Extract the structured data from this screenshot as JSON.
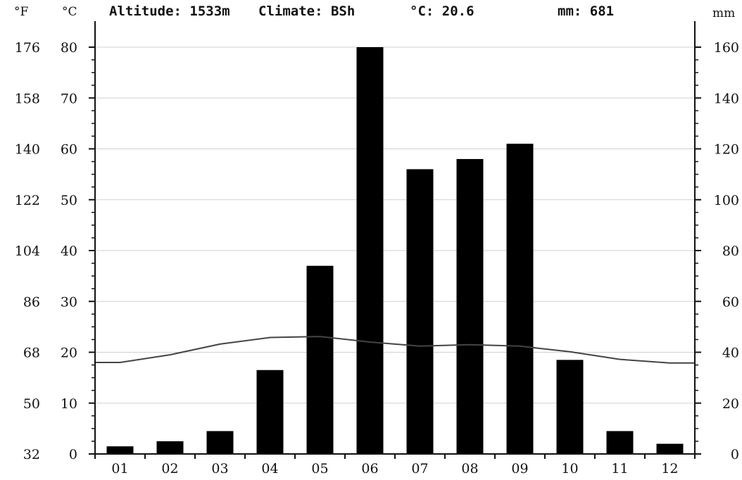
{
  "header": {
    "altitude": "Altitude: 1533m",
    "climate": "Climate: BSh",
    "mean_temp": "°C: 20.6",
    "annual_precip": "mm: 681"
  },
  "units": {
    "fahrenheit": "°F",
    "celsius": "°C",
    "precip": "mm"
  },
  "chart_data": {
    "type": "bar",
    "categories": [
      "01",
      "02",
      "03",
      "04",
      "05",
      "06",
      "07",
      "08",
      "09",
      "10",
      "11",
      "12"
    ],
    "series": [
      {
        "values": [
          3,
          5,
          9,
          33,
          74,
          160,
          112,
          116,
          122,
          37,
          9,
          4
        ],
        "axis": "right",
        "type": "bar",
        "color": "#000000"
      },
      {
        "values": [
          18.0,
          19.5,
          21.6,
          22.9,
          23.1,
          22.0,
          21.2,
          21.5,
          21.2,
          20.1,
          18.6,
          17.9
        ],
        "axis": "left",
        "type": "line",
        "color": "#444444"
      }
    ],
    "axes": {
      "fahrenheit": {
        "ticks": [
          "32",
          "50",
          "68",
          "86",
          "104",
          "122",
          "140",
          "158",
          "176"
        ]
      },
      "celsius": {
        "range": [
          0,
          80
        ],
        "ticks": [
          "0",
          "10",
          "20",
          "30",
          "40",
          "50",
          "60",
          "70",
          "80"
        ]
      },
      "precip": {
        "range": [
          0,
          160
        ],
        "ticks": [
          "0",
          "20",
          "40",
          "60",
          "80",
          "100",
          "120",
          "140",
          "160"
        ]
      }
    },
    "grid": true
  }
}
